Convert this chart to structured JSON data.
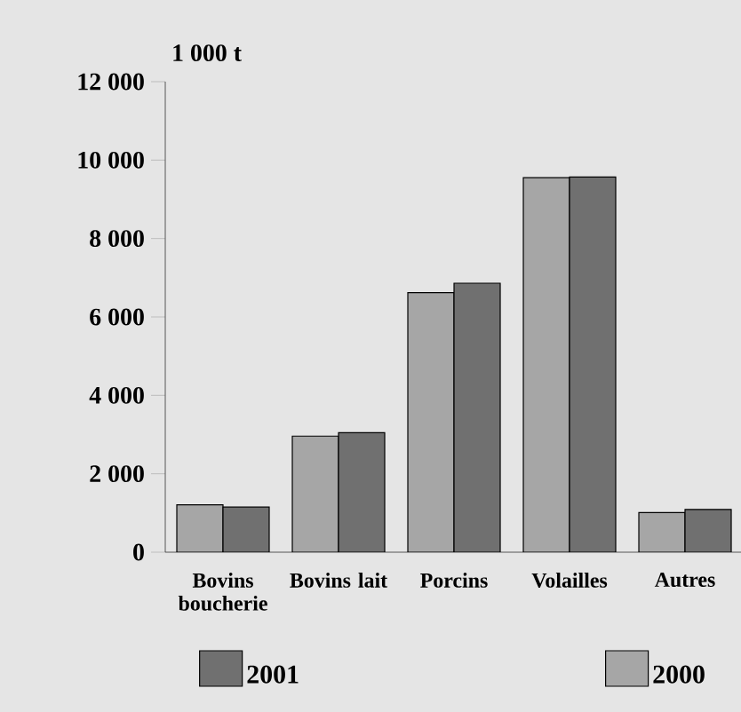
{
  "chart_data": {
    "type": "bar",
    "ylabel": "1 000 t",
    "categories": [
      "Bovins boucherie",
      "Bovins lait",
      "Porcins",
      "Volailles",
      "Autres"
    ],
    "series": [
      {
        "name": "2000",
        "color": "#a6a6a6",
        "values": [
          1210,
          2960,
          6620,
          9550,
          1010
        ]
      },
      {
        "name": "2001",
        "color": "#707070",
        "values": [
          1150,
          3050,
          6860,
          9570,
          1090
        ]
      }
    ],
    "ylim": [
      0,
      12000
    ],
    "yticks": [
      {
        "value": 0,
        "label": "0"
      },
      {
        "value": 2000,
        "label": "2 000"
      },
      {
        "value": 4000,
        "label": "4 000"
      },
      {
        "value": 6000,
        "label": "6 000"
      },
      {
        "value": 8000,
        "label": "8 000"
      },
      {
        "value": 10000,
        "label": "10 000"
      },
      {
        "value": 12000,
        "label": "12 000"
      }
    ],
    "legend": "bottom"
  }
}
